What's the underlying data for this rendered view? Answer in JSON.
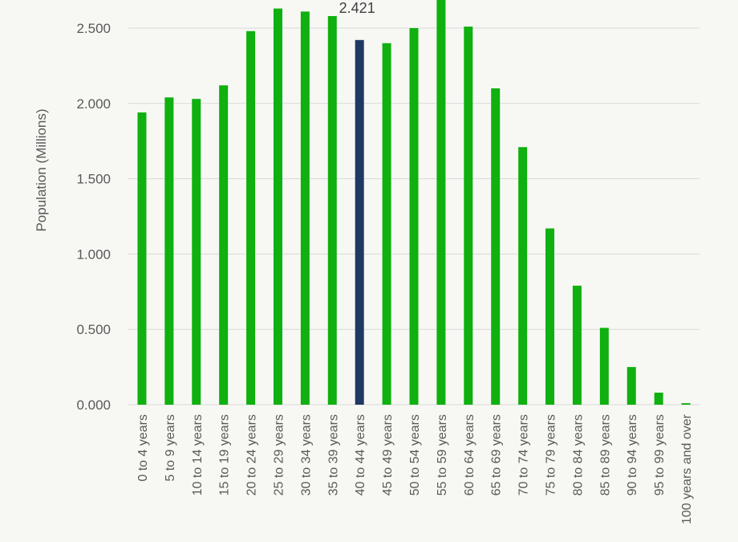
{
  "colors": {
    "bar": "#0fb00f",
    "highlight": "#1f3864",
    "grid": "#d9d9d9",
    "background": "#f7f7f3"
  },
  "chart_data": {
    "type": "bar",
    "title": "",
    "xlabel": "",
    "ylabel": "Population (Millions)",
    "ylim": [
      0,
      2.7
    ],
    "yticks": [
      "0.000",
      "0.500",
      "1.000",
      "1.500",
      "2.000",
      "2.500"
    ],
    "grid": true,
    "legend": "none",
    "highlight_category": "40 to 44 years",
    "categories": [
      "0 to 4 years",
      "5 to 9 years",
      "10 to 14 years",
      "15 to 19 years",
      "20 to 24 years",
      "25 to 29 years",
      "30 to 34 years",
      "35 to 39 years",
      "40 to 44 years",
      "45 to 49 years",
      "50 to 54 years",
      "55 to 59 years",
      "60 to 64 years",
      "65 to 69 years",
      "70 to 74 years",
      "75 to 79 years",
      "80 to 84 years",
      "85 to 89 years",
      "90 to 94 years",
      "95 to 99 years",
      "100 years and over"
    ],
    "values": [
      1.94,
      2.04,
      2.03,
      2.12,
      2.48,
      2.63,
      2.61,
      2.58,
      2.421,
      2.4,
      2.5,
      2.7,
      2.51,
      2.1,
      1.71,
      1.17,
      0.79,
      0.51,
      0.25,
      0.08,
      0.01
    ],
    "data_labels": [
      {
        "category": "40 to 44 years",
        "text": "2.421"
      }
    ]
  }
}
